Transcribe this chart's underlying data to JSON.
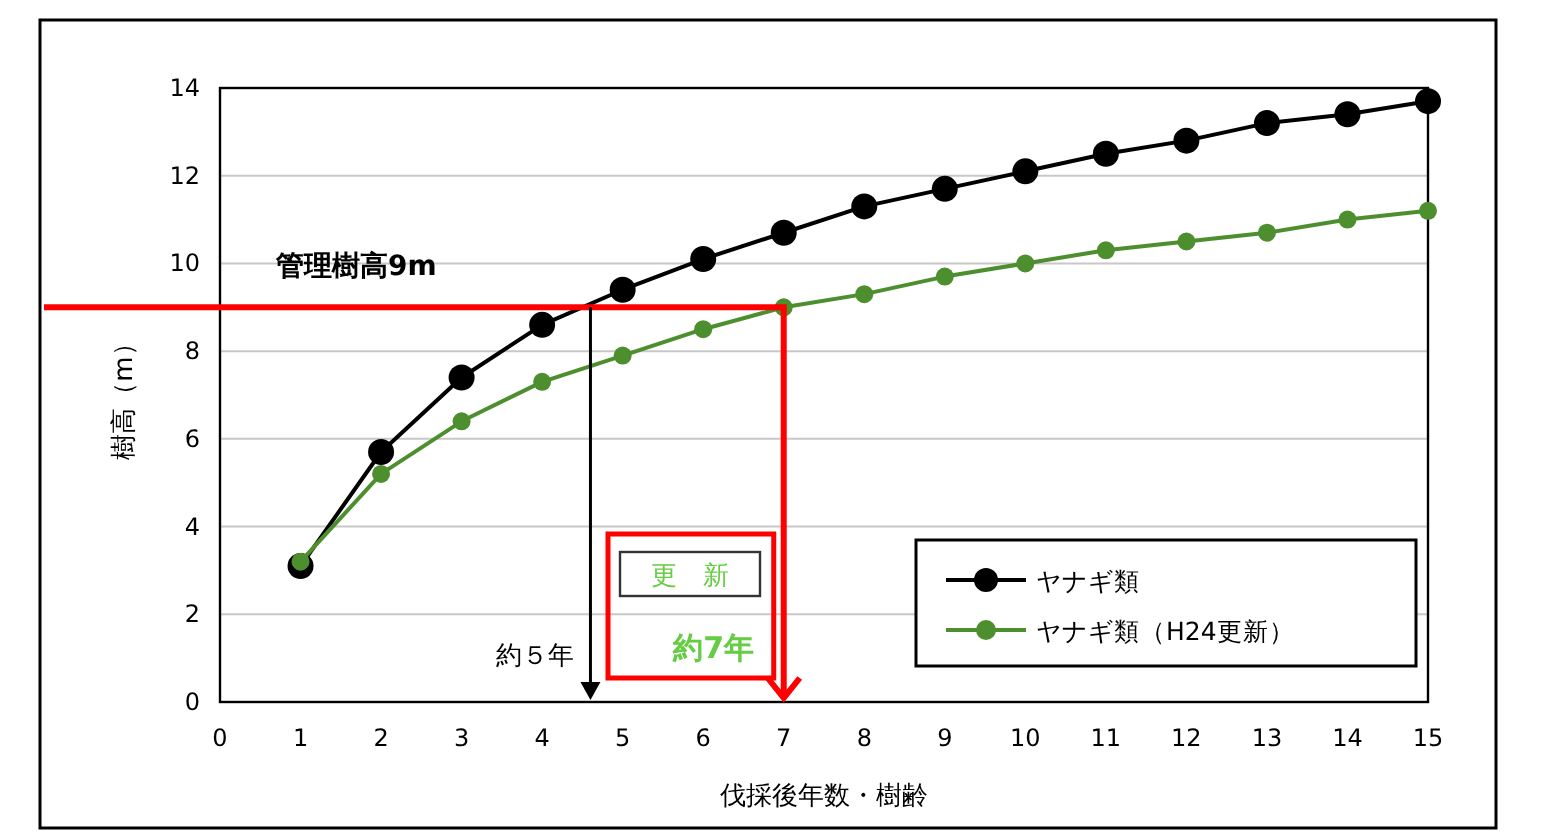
{
  "chart_data": {
    "type": "line",
    "xlabel": "伐採後年数・樹齢",
    "ylabel": "樹高（m）",
    "x": [
      1,
      2,
      3,
      4,
      5,
      6,
      7,
      8,
      9,
      10,
      11,
      12,
      13,
      14,
      15
    ],
    "series": [
      {
        "name": "ヤナギ類",
        "color": "#000000",
        "values": [
          3.1,
          5.7,
          7.4,
          8.6,
          9.4,
          10.1,
          10.7,
          11.3,
          11.7,
          12.1,
          12.5,
          12.8,
          13.2,
          13.4,
          13.7
        ]
      },
      {
        "name": "ヤナギ類（H24更新）",
        "color": "#4d8f2e",
        "values": [
          3.2,
          5.2,
          6.4,
          7.3,
          7.9,
          8.5,
          9.0,
          9.3,
          9.7,
          10.0,
          10.3,
          10.5,
          10.7,
          11.0,
          11.2
        ]
      }
    ],
    "xlim": [
      0,
      15
    ],
    "xticks": [
      0,
      1,
      2,
      3,
      4,
      5,
      6,
      7,
      8,
      9,
      10,
      11,
      12,
      13,
      14,
      15
    ],
    "ylim": [
      0,
      14
    ],
    "yticks": [
      0,
      2,
      4,
      6,
      8,
      10,
      12,
      14
    ],
    "grid": "y",
    "legend": "bottom right",
    "marker": "circle",
    "line_style": "solid",
    "ref_lines": [
      {
        "axis": "y",
        "value": 9,
        "label": "管理樹高9m",
        "color": "#ff0000"
      },
      {
        "axis": "x",
        "value": 4.6,
        "label": "約５年",
        "color": "#000000"
      },
      {
        "axis": "x",
        "value": 7,
        "label": "約7年",
        "color": "#ff0000"
      }
    ],
    "annotations": [
      "更　新"
    ]
  }
}
